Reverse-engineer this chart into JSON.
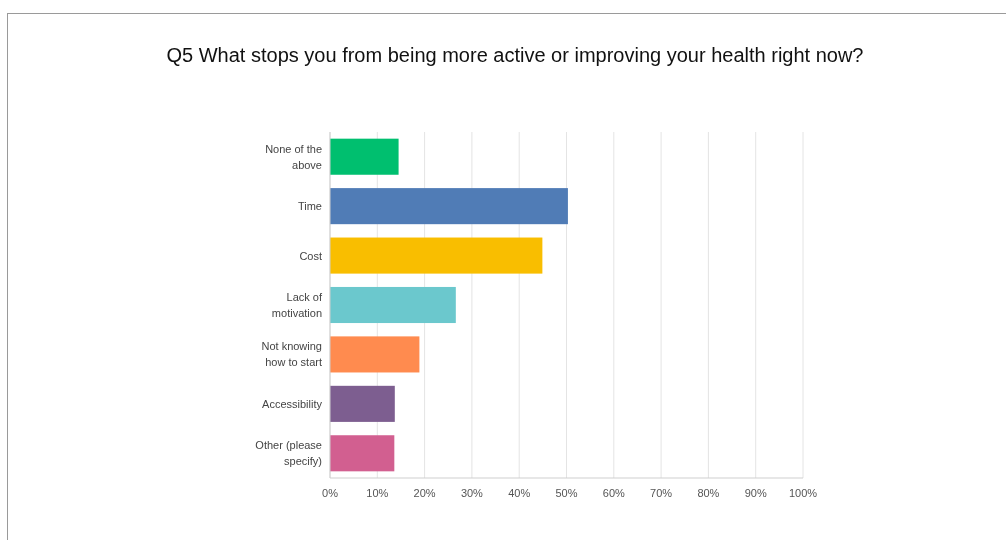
{
  "chart_data": {
    "type": "bar",
    "orientation": "horizontal",
    "title": "Q5 What stops you from being more active or improving your health right now?",
    "categories": [
      "None of the above",
      "Time",
      "Cost",
      "Lack of motivation",
      "Not knowing how to start",
      "Accessibility",
      "Other (please specify)"
    ],
    "values": [
      14.5,
      50.3,
      44.9,
      26.6,
      18.9,
      13.7,
      13.6
    ],
    "colors": [
      "#00bf6f",
      "#507cb6",
      "#f9be00",
      "#6bc8cd",
      "#ff8b4f",
      "#7d5e90",
      "#d25f90"
    ],
    "xlim": [
      0,
      100
    ],
    "xticks": [
      {
        "value": 0,
        "label": "0%"
      },
      {
        "value": 10,
        "label": "10%"
      },
      {
        "value": 20,
        "label": "20%"
      },
      {
        "value": 30,
        "label": "30%"
      },
      {
        "value": 40,
        "label": "40%"
      },
      {
        "value": 50,
        "label": "50%"
      },
      {
        "value": 60,
        "label": "60%"
      },
      {
        "value": 70,
        "label": "70%"
      },
      {
        "value": 80,
        "label": "80%"
      },
      {
        "value": 90,
        "label": "90%"
      },
      {
        "value": 100,
        "label": "100%"
      }
    ],
    "grid": "x"
  }
}
